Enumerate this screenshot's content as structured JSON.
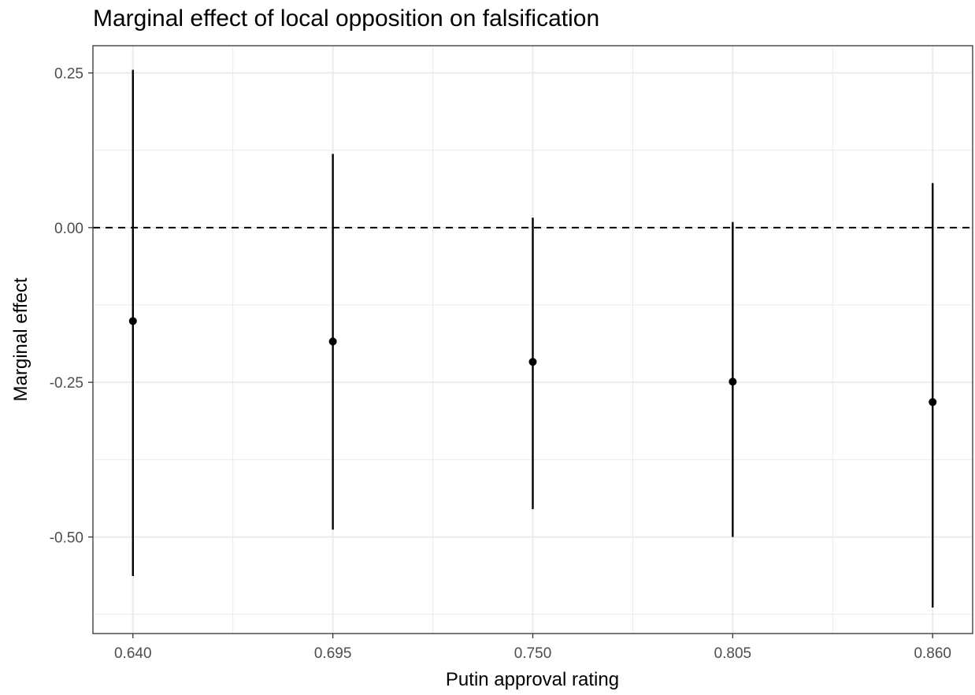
{
  "chart_data": {
    "type": "scatter",
    "subtype": "point-range",
    "title": "Marginal effect of local opposition on falsification",
    "xlabel": "Putin approval rating",
    "ylabel": "Marginal effect",
    "x_tick_labels": [
      "0.640",
      "0.695",
      "0.750",
      "0.805",
      "0.860"
    ],
    "y_tick_labels": [
      "0.25",
      "0.00",
      "-0.25",
      "-0.50"
    ],
    "xlim": [
      0.629,
      0.871
    ],
    "ylim": [
      -0.656,
      0.294
    ],
    "grid": true,
    "reference_line": {
      "y": 0.0,
      "style": "dashed"
    },
    "points": [
      {
        "x": 0.64,
        "y": -0.151,
        "lower": -0.563,
        "upper": 0.255
      },
      {
        "x": 0.695,
        "y": -0.184,
        "lower": -0.488,
        "upper": 0.119
      },
      {
        "x": 0.75,
        "y": -0.217,
        "lower": -0.455,
        "upper": 0.016
      },
      {
        "x": 0.805,
        "y": -0.249,
        "lower": -0.5,
        "upper": 0.009
      },
      {
        "x": 0.86,
        "y": -0.282,
        "lower": -0.614,
        "upper": 0.072
      }
    ],
    "colors": {
      "mark": "#000000",
      "grid": "#ebebeb",
      "panel_border": "#333333",
      "tick_text": "#4d4d4d"
    }
  }
}
